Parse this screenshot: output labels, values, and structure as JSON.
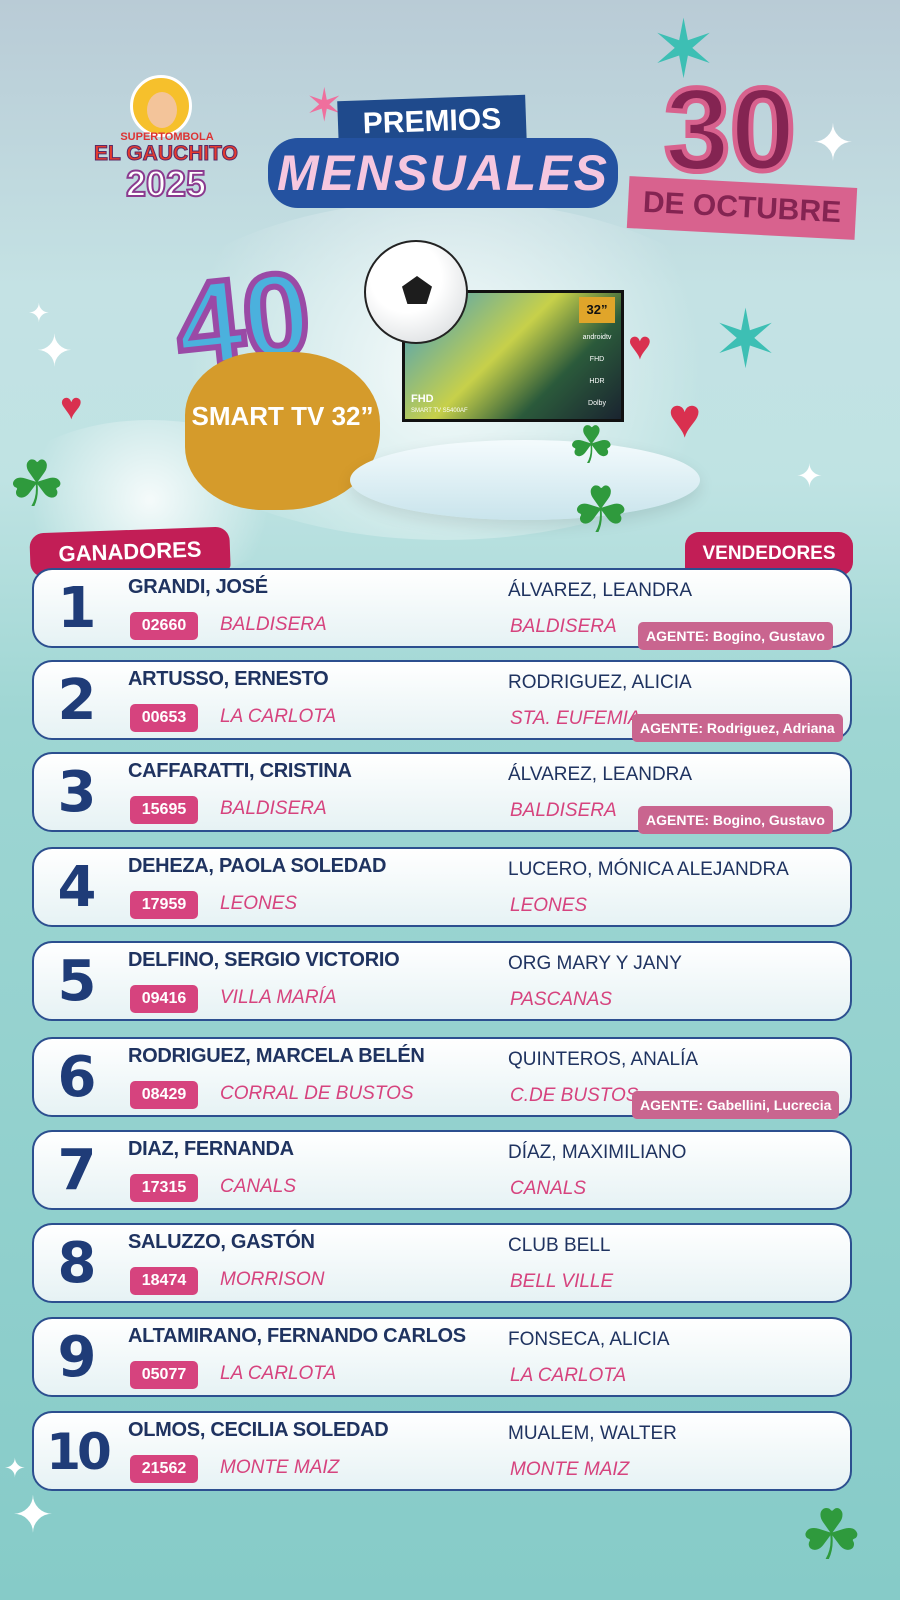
{
  "header": {
    "logo": {
      "line1": "SUPERTOMBOLA",
      "line2": "EL GAUCHITO",
      "year": "2025"
    },
    "title_top": "PREMIOS",
    "title_bottom": "MENSUALES",
    "date_day": "30",
    "date_month": "DE OCTUBRE"
  },
  "prize": {
    "quantity": "40",
    "label": "SMART TV 32”",
    "tv": {
      "size_badge": "32”",
      "side_labels": [
        "androidtv",
        "FHD",
        "HDR",
        "Dolby"
      ],
      "screen_title": "FHD",
      "model": "SMART TV S5400AF"
    }
  },
  "sections": {
    "winners_label": "GANADORES",
    "sellers_label": "VENDEDORES"
  },
  "colors": {
    "navy": "#1f3360",
    "pink": "#d6437e",
    "crimson": "#c21e56",
    "teal": "#86cbc8",
    "gold": "#d59b2b"
  },
  "winners": [
    {
      "rank": "1",
      "name": "GRANDI, JOSÉ",
      "ticket": "02660",
      "city": "BALDISERA",
      "seller": "ÁLVAREZ, LEANDRA",
      "seller_city": "BALDISERA",
      "agent": "AGENTE: Bogino, Gustavo"
    },
    {
      "rank": "2",
      "name": "ARTUSSO, ERNESTO",
      "ticket": "00653",
      "city": "LA CARLOTA",
      "seller": "RODRIGUEZ, ALICIA",
      "seller_city": "STA. EUFEMIA",
      "agent": "AGENTE: Rodriguez, Adriana"
    },
    {
      "rank": "3",
      "name": "CAFFARATTI, CRISTINA",
      "ticket": "15695",
      "city": "BALDISERA",
      "seller": "ÁLVAREZ, LEANDRA",
      "seller_city": "BALDISERA",
      "agent": "AGENTE: Bogino, Gustavo"
    },
    {
      "rank": "4",
      "name": "DEHEZA, PAOLA SOLEDAD",
      "ticket": "17959",
      "city": "LEONES",
      "seller": "LUCERO, MÓNICA ALEJANDRA",
      "seller_city": "LEONES",
      "agent": ""
    },
    {
      "rank": "5",
      "name": "DELFINO, SERGIO VICTORIO",
      "ticket": "09416",
      "city": "VILLA MARÍA",
      "seller": "ORG MARY Y JANY",
      "seller_city": "PASCANAS",
      "agent": ""
    },
    {
      "rank": "6",
      "name": "RODRIGUEZ, MARCELA BELÉN",
      "ticket": "08429",
      "city": "CORRAL DE BUSTOS",
      "seller": "QUINTEROS, ANALÍA",
      "seller_city": "C.DE BUSTOS",
      "agent": "AGENTE: Gabellini, Lucrecia"
    },
    {
      "rank": "7",
      "name": "DIAZ, FERNANDA",
      "ticket": "17315",
      "city": "CANALS",
      "seller": "DÍAZ, MAXIMILIANO",
      "seller_city": "CANALS",
      "agent": ""
    },
    {
      "rank": "8",
      "name": "SALUZZO, GASTÓN",
      "ticket": "18474",
      "city": "MORRISON",
      "seller": "CLUB BELL",
      "seller_city": "BELL VILLE",
      "agent": ""
    },
    {
      "rank": "9",
      "name": "ALTAMIRANO, FERNANDO CARLOS",
      "ticket": "05077",
      "city": "LA CARLOTA",
      "seller": "FONSECA, ALICIA",
      "seller_city": "LA CARLOTA",
      "agent": ""
    },
    {
      "rank": "10",
      "name": "OLMOS, CECILIA SOLEDAD",
      "ticket": "21562",
      "city": "MONTE MAIZ",
      "seller": "MUALEM, WALTER",
      "seller_city": "MONTE MAIZ",
      "agent": ""
    }
  ]
}
